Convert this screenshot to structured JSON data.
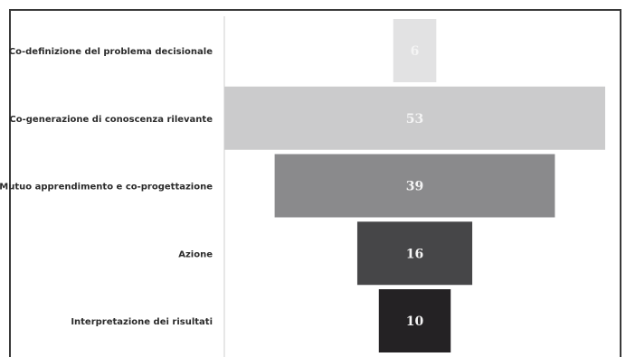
{
  "chart_data": {
    "type": "bar",
    "orientation": "horizontal",
    "style": "funnel",
    "title": "",
    "xlabel": "",
    "ylabel": "",
    "xlim": [
      0,
      53
    ],
    "grid": false,
    "legend": "none",
    "categories": [
      "Co-definizione del problema decisionale",
      "Co-generazione di conoscenza rilevante",
      "Mutuo apprendimento e co-progettazione",
      "Azione",
      "Interpretazione dei risultati"
    ],
    "values": [
      6,
      53,
      39,
      16,
      10
    ],
    "data_labels": [
      "6",
      "53",
      "39",
      "16",
      "10"
    ],
    "bar_colors": [
      "#e2e2e3",
      "#cbcbcc",
      "#8a8a8c",
      "#464648",
      "#242224"
    ],
    "label_colors": [
      "#f4f4f4",
      "#f4f4f4",
      "#f4f4f4",
      "#f4f4f4",
      "#f4f4f4"
    ],
    "frame_color": "#3a3a3a",
    "separator_color": "#cfcfcf"
  }
}
